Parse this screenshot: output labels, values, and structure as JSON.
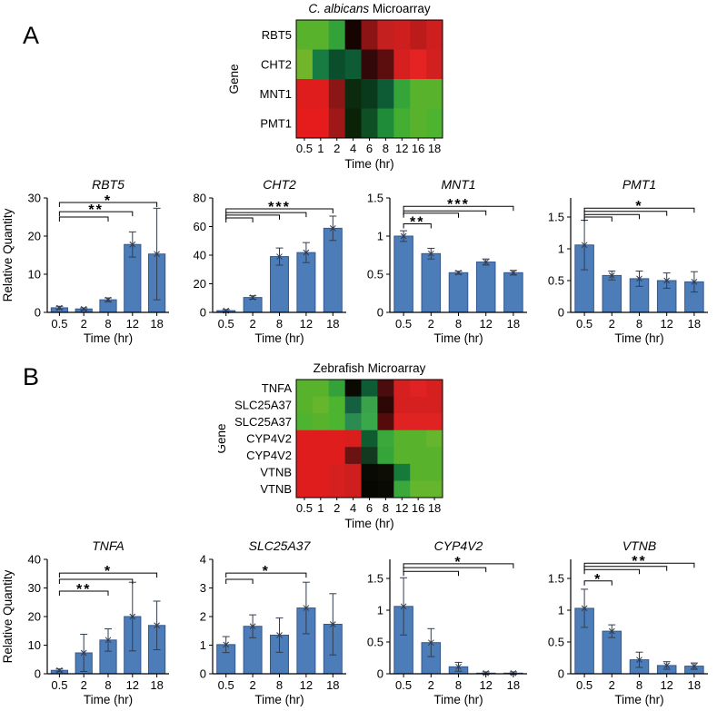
{
  "figure": {
    "background": "#ffffff",
    "bar_fill": "#4d7db8",
    "bar_edge": "#35578c",
    "error_color": "#333c4d",
    "axis_color": "#000000",
    "sig_color": "#000000"
  },
  "panels": [
    {
      "label": "A"
    },
    {
      "label": "B"
    }
  ],
  "chart_data": [
    {
      "type": "heatmap",
      "panel": "A",
      "title_parts": [
        {
          "text": "C. albicans",
          "italic": true
        },
        {
          "text": " Microarray",
          "italic": false
        }
      ],
      "xlabel": "Time (hr)",
      "ylabel": "Gene",
      "x_ticks": [
        "0.5",
        "1",
        "2",
        "4",
        "6",
        "8",
        "12",
        "16",
        "18"
      ],
      "genes": [
        "RBT5",
        "CHT2",
        "MNT1",
        "PMT1"
      ],
      "cell_colors": [
        [
          "#59b22b",
          "#59b22b",
          "#33a239",
          "#160401",
          "#8c1414",
          "#c42020",
          "#cf1e1e",
          "#bb1b1b",
          "#cf1e1e"
        ],
        [
          "#73b52a",
          "#177c42",
          "#0b4e2c",
          "#0e5c36",
          "#330808",
          "#5c0d0d",
          "#d62020",
          "#e62323",
          "#d22020"
        ],
        [
          "#e01d1d",
          "#e01d1d",
          "#8c1515",
          "#0c2a0e",
          "#093a1c",
          "#0e5c36",
          "#35a53a",
          "#59b22b",
          "#59b22b"
        ],
        [
          "#e61c1c",
          "#e61c1c",
          "#a01717",
          "#0a2208",
          "#0e4f24",
          "#1f8c3a",
          "#43ae31",
          "#59b22b",
          "#4cb42e"
        ]
      ]
    },
    {
      "type": "bar",
      "panel": "A",
      "title": "RBT5",
      "xlabel": "Time (hr)",
      "ylabel": "Relative Quantity",
      "categories": [
        "0.5",
        "2",
        "8",
        "12",
        "18"
      ],
      "values": [
        1.2,
        0.9,
        3.3,
        17.8,
        15.3
      ],
      "errors": [
        0.4,
        0.3,
        0.5,
        3.3,
        12.0
      ],
      "ylim": [
        0,
        30
      ],
      "yticks": [
        0,
        10,
        20,
        30
      ],
      "brackets": [
        {
          "from": "0.5",
          "to": "18",
          "y": 28.8,
          "label": "*"
        },
        {
          "from": "0.5",
          "to": "12",
          "y": 26.4,
          "label": "**"
        },
        {
          "from": "0.5",
          "to": "8",
          "y": 25.0,
          "label": ""
        }
      ]
    },
    {
      "type": "bar",
      "panel": "A",
      "title": "CHT2",
      "xlabel": "Time (hr)",
      "ylabel": "",
      "categories": [
        "0.5",
        "2",
        "8",
        "12",
        "18"
      ],
      "values": [
        1.2,
        10.4,
        39.0,
        41.8,
        58.8
      ],
      "errors": [
        0.8,
        1.2,
        6.0,
        7.0,
        8.5
      ],
      "ylim": [
        0,
        80
      ],
      "yticks": [
        0,
        20,
        40,
        60,
        80
      ],
      "brackets": [
        {
          "from": "0.5",
          "to": "18",
          "y": 72.4,
          "label": "***"
        },
        {
          "from": "0.5",
          "to": "12",
          "y": 69.8,
          "label": ""
        },
        {
          "from": "0.5",
          "to": "8",
          "y": 68.0,
          "label": ""
        },
        {
          "from": "0.5",
          "to": "2",
          "y": 66.0,
          "label": ""
        }
      ]
    },
    {
      "type": "bar",
      "panel": "A",
      "title": "MNT1",
      "xlabel": "Time (hr)",
      "ylabel": "",
      "categories": [
        "0.5",
        "2",
        "8",
        "12",
        "18"
      ],
      "values": [
        1.0,
        0.77,
        0.52,
        0.66,
        0.52
      ],
      "errors": [
        0.07,
        0.07,
        0.02,
        0.04,
        0.03
      ],
      "ylim": [
        0,
        1.5
      ],
      "yticks": [
        0,
        0.5,
        1,
        1.5
      ],
      "brackets": [
        {
          "from": "0.5",
          "to": "18",
          "y": 1.39,
          "label": "***"
        },
        {
          "from": "0.5",
          "to": "12",
          "y": 1.33,
          "label": ""
        },
        {
          "from": "0.5",
          "to": "8",
          "y": 1.3,
          "label": ""
        },
        {
          "from": "0.5",
          "to": "2",
          "y": 1.16,
          "label": "**"
        }
      ]
    },
    {
      "type": "bar",
      "panel": "A",
      "title": "PMT1",
      "xlabel": "Time (hr)",
      "ylabel": "",
      "categories": [
        "0.5",
        "2",
        "8",
        "12",
        "18"
      ],
      "values": [
        1.06,
        0.58,
        0.53,
        0.5,
        0.48
      ],
      "errors": [
        0.39,
        0.07,
        0.12,
        0.12,
        0.16
      ],
      "ylim": [
        0,
        1.8
      ],
      "yticks": [
        0,
        0.5,
        1,
        1.5
      ],
      "brackets": [
        {
          "from": "0.5",
          "to": "18",
          "y": 1.64,
          "label": "*"
        },
        {
          "from": "0.5",
          "to": "12",
          "y": 1.59,
          "label": ""
        },
        {
          "from": "0.5",
          "to": "8",
          "y": 1.54,
          "label": ""
        },
        {
          "from": "0.5",
          "to": "2",
          "y": 1.5,
          "label": ""
        }
      ]
    },
    {
      "type": "heatmap",
      "panel": "B",
      "title_parts": [
        {
          "text": "Zebrafish Microarray",
          "italic": false
        }
      ],
      "xlabel": "Time (hr)",
      "ylabel": "Gene",
      "x_ticks": [
        "0.5",
        "1",
        "2",
        "4",
        "6",
        "8",
        "12",
        "16",
        "18"
      ],
      "genes": [
        "TNFA",
        "SLC25A37",
        "SLC25A37",
        "CYP4V2",
        "CYP4V2",
        "VTNB",
        "VTNB"
      ],
      "cell_colors": [
        [
          "#59b22b",
          "#59b22b",
          "#33a239",
          "#0a0a03",
          "#0e5c36",
          "#4a0c0c",
          "#d62020",
          "#e02222",
          "#d62020"
        ],
        [
          "#59b22b",
          "#66b62d",
          "#4cb42e",
          "#156040",
          "#3aa34a",
          "#2d0606",
          "#d62020",
          "#d62020",
          "#d62020"
        ],
        [
          "#4cb42e",
          "#59b22b",
          "#4cb42e",
          "#2a8c50",
          "#3aa84a",
          "#550b0b",
          "#e02222",
          "#e02222",
          "#e02222"
        ],
        [
          "#e01d1d",
          "#e01d1d",
          "#e01d1d",
          "#da1d1d",
          "#0e5c30",
          "#3aa83a",
          "#59b22b",
          "#59b22b",
          "#66b62d"
        ],
        [
          "#e01d1d",
          "#e01d1d",
          "#e01d1d",
          "#6b1212",
          "#133a20",
          "#35a53a",
          "#59b22b",
          "#59b22b",
          "#59b22b"
        ],
        [
          "#e01d1d",
          "#e01d1d",
          "#d62020",
          "#cf1e1e",
          "#0a0a04",
          "#0d0d05",
          "#157a3a",
          "#59b22b",
          "#59b22b"
        ],
        [
          "#e01d1d",
          "#e01d1d",
          "#d62020",
          "#cf1e1e",
          "#070702",
          "#0a0a04",
          "#3aa83a",
          "#66b62d",
          "#66b62d"
        ]
      ]
    },
    {
      "type": "bar",
      "panel": "B",
      "title": "TNFA",
      "xlabel": "Time (hr)",
      "ylabel": "Relative Quantity",
      "categories": [
        "0.5",
        "2",
        "8",
        "12",
        "18"
      ],
      "values": [
        1.2,
        7.3,
        11.8,
        20.0,
        16.9
      ],
      "errors": [
        0.5,
        6.5,
        3.9,
        12.0,
        8.5
      ],
      "ylim": [
        0,
        40
      ],
      "yticks": [
        0,
        10,
        20,
        30,
        40
      ],
      "brackets": [
        {
          "from": "0.5",
          "to": "18",
          "y": 35.2,
          "label": "*"
        },
        {
          "from": "0.5",
          "to": "12",
          "y": 33.0,
          "label": ""
        },
        {
          "from": "0.5",
          "to": "8",
          "y": 28.9,
          "label": "**"
        }
      ]
    },
    {
      "type": "bar",
      "panel": "B",
      "title": "SLC25A37",
      "xlabel": "Time (hr)",
      "ylabel": "",
      "categories": [
        "0.5",
        "2",
        "8",
        "12",
        "18"
      ],
      "values": [
        1.02,
        1.66,
        1.35,
        2.3,
        1.73
      ],
      "errors": [
        0.28,
        0.4,
        0.6,
        0.9,
        1.07
      ],
      "ylim": [
        0,
        4
      ],
      "yticks": [
        0,
        1,
        2,
        3,
        4
      ],
      "brackets": [
        {
          "from": "0.5",
          "to": "12",
          "y": 3.52,
          "label": "*"
        },
        {
          "from": "0.5",
          "to": "2",
          "y": 3.3,
          "label": ""
        }
      ]
    },
    {
      "type": "bar",
      "panel": "B",
      "title": "CYP4V2",
      "xlabel": "Time (hr)",
      "ylabel": "",
      "categories": [
        "0.5",
        "2",
        "8",
        "12",
        "18"
      ],
      "values": [
        1.06,
        0.49,
        0.11,
        0.01,
        0.01
      ],
      "errors": [
        0.45,
        0.22,
        0.07,
        0.02,
        0.02
      ],
      "ylim": [
        0,
        1.8
      ],
      "yticks": [
        0,
        0.5,
        1,
        1.5
      ],
      "brackets": [
        {
          "from": "0.5",
          "to": "18",
          "y": 1.73,
          "label": "*"
        },
        {
          "from": "0.5",
          "to": "12",
          "y": 1.67,
          "label": ""
        },
        {
          "from": "0.5",
          "to": "8",
          "y": 1.61,
          "label": ""
        }
      ]
    },
    {
      "type": "bar",
      "panel": "B",
      "title": "VTNB",
      "xlabel": "Time (hr)",
      "ylabel": "",
      "categories": [
        "0.5",
        "2",
        "8",
        "12",
        "18"
      ],
      "values": [
        1.03,
        0.67,
        0.22,
        0.13,
        0.12
      ],
      "errors": [
        0.3,
        0.1,
        0.12,
        0.06,
        0.05
      ],
      "ylim": [
        0,
        1.8
      ],
      "yticks": [
        0,
        0.5,
        1,
        1.5
      ],
      "brackets": [
        {
          "from": "0.5",
          "to": "18",
          "y": 1.74,
          "label": "**"
        },
        {
          "from": "0.5",
          "to": "12",
          "y": 1.69,
          "label": ""
        },
        {
          "from": "0.5",
          "to": "8",
          "y": 1.64,
          "label": ""
        },
        {
          "from": "0.5",
          "to": "2",
          "y": 1.46,
          "label": "*"
        }
      ]
    }
  ]
}
